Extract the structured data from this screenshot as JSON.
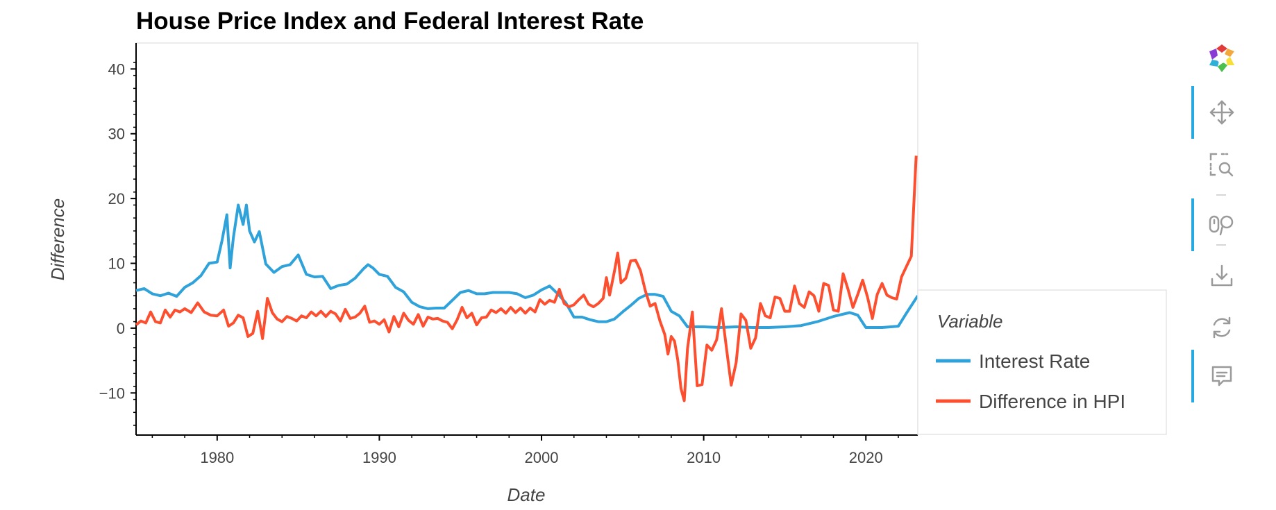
{
  "chart_data": {
    "type": "line",
    "title": "House Price Index and Federal Interest Rate",
    "xlabel": "Date",
    "ylabel": "Difference",
    "xlim": [
      1975.0,
      2023.2
    ],
    "ylim": [
      -16.5,
      44
    ],
    "x_ticks": [
      1980,
      1990,
      2000,
      2010,
      2020
    ],
    "y_ticks": [
      -10,
      0,
      10,
      20,
      30,
      40
    ],
    "grid": false,
    "legend": {
      "title": "Variable",
      "position": "right"
    },
    "series": [
      {
        "name": "Interest Rate",
        "color": "#30a2da",
        "points": [
          [
            1975.0,
            5.8
          ],
          [
            1975.5,
            6.1
          ],
          [
            1976.0,
            5.3
          ],
          [
            1976.5,
            5.0
          ],
          [
            1977.0,
            5.4
          ],
          [
            1977.5,
            4.9
          ],
          [
            1978.0,
            6.3
          ],
          [
            1978.5,
            7.0
          ],
          [
            1979.0,
            8.1
          ],
          [
            1979.5,
            10.0
          ],
          [
            1980.0,
            10.2
          ],
          [
            1980.3,
            13.5
          ],
          [
            1980.6,
            17.5
          ],
          [
            1980.8,
            9.3
          ],
          [
            1981.0,
            14.0
          ],
          [
            1981.3,
            19.0
          ],
          [
            1981.6,
            16.0
          ],
          [
            1981.8,
            19.0
          ],
          [
            1982.0,
            15.0
          ],
          [
            1982.3,
            13.3
          ],
          [
            1982.6,
            14.9
          ],
          [
            1983.0,
            9.9
          ],
          [
            1983.5,
            8.6
          ],
          [
            1984.0,
            9.5
          ],
          [
            1984.5,
            9.8
          ],
          [
            1985.0,
            11.3
          ],
          [
            1985.5,
            8.3
          ],
          [
            1986.0,
            7.9
          ],
          [
            1986.5,
            8.0
          ],
          [
            1987.0,
            6.1
          ],
          [
            1987.5,
            6.6
          ],
          [
            1988.0,
            6.8
          ],
          [
            1988.5,
            7.7
          ],
          [
            1989.0,
            9.1
          ],
          [
            1989.3,
            9.8
          ],
          [
            1989.6,
            9.3
          ],
          [
            1990.0,
            8.3
          ],
          [
            1990.5,
            8.0
          ],
          [
            1991.0,
            6.3
          ],
          [
            1991.5,
            5.6
          ],
          [
            1992.0,
            4.0
          ],
          [
            1992.5,
            3.3
          ],
          [
            1993.0,
            3.0
          ],
          [
            1993.5,
            3.1
          ],
          [
            1994.0,
            3.1
          ],
          [
            1994.5,
            4.3
          ],
          [
            1995.0,
            5.5
          ],
          [
            1995.5,
            5.8
          ],
          [
            1996.0,
            5.3
          ],
          [
            1996.5,
            5.3
          ],
          [
            1997.0,
            5.5
          ],
          [
            1997.5,
            5.5
          ],
          [
            1998.0,
            5.5
          ],
          [
            1998.5,
            5.3
          ],
          [
            1999.0,
            4.7
          ],
          [
            1999.5,
            5.1
          ],
          [
            2000.0,
            5.9
          ],
          [
            2000.5,
            6.5
          ],
          [
            2001.0,
            5.3
          ],
          [
            2001.5,
            3.9
          ],
          [
            2002.0,
            1.7
          ],
          [
            2002.5,
            1.7
          ],
          [
            2003.0,
            1.3
          ],
          [
            2003.5,
            1.0
          ],
          [
            2004.0,
            1.0
          ],
          [
            2004.5,
            1.4
          ],
          [
            2005.0,
            2.5
          ],
          [
            2005.5,
            3.5
          ],
          [
            2006.0,
            4.6
          ],
          [
            2006.5,
            5.2
          ],
          [
            2007.0,
            5.2
          ],
          [
            2007.5,
            4.9
          ],
          [
            2008.0,
            2.6
          ],
          [
            2008.5,
            1.9
          ],
          [
            2009.0,
            0.2
          ],
          [
            2010.0,
            0.2
          ],
          [
            2011.0,
            0.1
          ],
          [
            2012.0,
            0.2
          ],
          [
            2013.0,
            0.1
          ],
          [
            2014.0,
            0.1
          ],
          [
            2015.0,
            0.2
          ],
          [
            2016.0,
            0.4
          ],
          [
            2017.0,
            1.0
          ],
          [
            2018.0,
            1.8
          ],
          [
            2019.0,
            2.4
          ],
          [
            2019.5,
            2.0
          ],
          [
            2020.0,
            0.1
          ],
          [
            2021.0,
            0.1
          ],
          [
            2022.0,
            0.3
          ],
          [
            2022.5,
            2.3
          ],
          [
            2023.2,
            5.0
          ]
        ]
      },
      {
        "name": "Difference in HPI",
        "color": "#fc4f30",
        "points": [
          [
            1975.0,
            0.5
          ],
          [
            1975.3,
            1.1
          ],
          [
            1975.6,
            0.8
          ],
          [
            1975.9,
            2.5
          ],
          [
            1976.2,
            1.0
          ],
          [
            1976.5,
            0.8
          ],
          [
            1976.8,
            2.8
          ],
          [
            1977.1,
            1.7
          ],
          [
            1977.4,
            2.8
          ],
          [
            1977.7,
            2.5
          ],
          [
            1978.0,
            3.0
          ],
          [
            1978.4,
            2.4
          ],
          [
            1978.8,
            3.9
          ],
          [
            1979.2,
            2.5
          ],
          [
            1979.6,
            2.0
          ],
          [
            1980.0,
            1.9
          ],
          [
            1980.4,
            2.8
          ],
          [
            1980.7,
            0.3
          ],
          [
            1981.0,
            0.8
          ],
          [
            1981.3,
            2.0
          ],
          [
            1981.6,
            1.6
          ],
          [
            1981.9,
            -1.3
          ],
          [
            1982.2,
            -0.8
          ],
          [
            1982.5,
            2.6
          ],
          [
            1982.8,
            -1.6
          ],
          [
            1983.1,
            4.6
          ],
          [
            1983.4,
            2.4
          ],
          [
            1983.7,
            1.4
          ],
          [
            1984.0,
            1.0
          ],
          [
            1984.3,
            1.8
          ],
          [
            1984.6,
            1.5
          ],
          [
            1984.9,
            1.1
          ],
          [
            1985.2,
            1.9
          ],
          [
            1985.5,
            1.6
          ],
          [
            1985.8,
            2.5
          ],
          [
            1986.1,
            1.9
          ],
          [
            1986.4,
            2.6
          ],
          [
            1986.7,
            1.8
          ],
          [
            1987.0,
            2.6
          ],
          [
            1987.3,
            2.2
          ],
          [
            1987.6,
            1.1
          ],
          [
            1987.9,
            2.9
          ],
          [
            1988.2,
            1.5
          ],
          [
            1988.5,
            1.7
          ],
          [
            1988.8,
            2.3
          ],
          [
            1989.1,
            3.4
          ],
          [
            1989.4,
            0.9
          ],
          [
            1989.7,
            1.1
          ],
          [
            1990.0,
            0.6
          ],
          [
            1990.3,
            1.3
          ],
          [
            1990.6,
            -0.6
          ],
          [
            1990.9,
            1.8
          ],
          [
            1991.2,
            0.2
          ],
          [
            1991.5,
            2.3
          ],
          [
            1991.8,
            1.2
          ],
          [
            1992.1,
            0.6
          ],
          [
            1992.4,
            2.1
          ],
          [
            1992.7,
            0.3
          ],
          [
            1993.0,
            1.7
          ],
          [
            1993.3,
            1.4
          ],
          [
            1993.6,
            1.5
          ],
          [
            1993.9,
            1.1
          ],
          [
            1994.2,
            0.9
          ],
          [
            1994.5,
            -0.1
          ],
          [
            1994.8,
            1.3
          ],
          [
            1995.1,
            3.2
          ],
          [
            1995.4,
            1.6
          ],
          [
            1995.7,
            2.3
          ],
          [
            1996.0,
            0.5
          ],
          [
            1996.3,
            1.6
          ],
          [
            1996.6,
            1.7
          ],
          [
            1996.9,
            2.8
          ],
          [
            1997.2,
            2.4
          ],
          [
            1997.5,
            3.0
          ],
          [
            1997.8,
            2.3
          ],
          [
            1998.1,
            3.2
          ],
          [
            1998.4,
            2.4
          ],
          [
            1998.7,
            3.1
          ],
          [
            1999.0,
            2.3
          ],
          [
            1999.3,
            3.1
          ],
          [
            1999.6,
            2.5
          ],
          [
            1999.9,
            4.4
          ],
          [
            2000.2,
            3.7
          ],
          [
            2000.5,
            4.3
          ],
          [
            2000.8,
            4.0
          ],
          [
            2001.1,
            6.0
          ],
          [
            2001.4,
            3.8
          ],
          [
            2001.7,
            3.3
          ],
          [
            2002.0,
            3.6
          ],
          [
            2002.3,
            4.4
          ],
          [
            2002.6,
            5.1
          ],
          [
            2002.9,
            3.7
          ],
          [
            2003.2,
            3.3
          ],
          [
            2003.5,
            3.8
          ],
          [
            2003.8,
            4.6
          ],
          [
            2004.0,
            7.8
          ],
          [
            2004.2,
            5.1
          ],
          [
            2004.5,
            8.8
          ],
          [
            2004.7,
            11.6
          ],
          [
            2004.9,
            7.0
          ],
          [
            2005.2,
            7.7
          ],
          [
            2005.5,
            10.4
          ],
          [
            2005.8,
            10.5
          ],
          [
            2006.1,
            8.9
          ],
          [
            2006.4,
            5.8
          ],
          [
            2006.7,
            3.4
          ],
          [
            2007.0,
            3.8
          ],
          [
            2007.3,
            1.1
          ],
          [
            2007.6,
            -1.0
          ],
          [
            2007.8,
            -4.0
          ],
          [
            2008.0,
            -1.3
          ],
          [
            2008.2,
            -2.0
          ],
          [
            2008.4,
            -4.9
          ],
          [
            2008.6,
            -9.3
          ],
          [
            2008.8,
            -11.2
          ],
          [
            2009.0,
            -3.2
          ],
          [
            2009.3,
            2.5
          ],
          [
            2009.6,
            -8.9
          ],
          [
            2009.9,
            -8.7
          ],
          [
            2010.2,
            -2.6
          ],
          [
            2010.5,
            -3.4
          ],
          [
            2010.8,
            -1.8
          ],
          [
            2011.1,
            3.0
          ],
          [
            2011.4,
            -3.0
          ],
          [
            2011.7,
            -8.8
          ],
          [
            2012.0,
            -5.3
          ],
          [
            2012.3,
            2.2
          ],
          [
            2012.6,
            1.2
          ],
          [
            2012.9,
            -3.1
          ],
          [
            2013.2,
            -1.5
          ],
          [
            2013.5,
            3.8
          ],
          [
            2013.8,
            1.9
          ],
          [
            2014.1,
            1.6
          ],
          [
            2014.4,
            4.8
          ],
          [
            2014.7,
            4.6
          ],
          [
            2015.0,
            2.6
          ],
          [
            2015.3,
            2.6
          ],
          [
            2015.6,
            6.5
          ],
          [
            2015.9,
            3.8
          ],
          [
            2016.2,
            3.2
          ],
          [
            2016.5,
            5.6
          ],
          [
            2016.8,
            5.0
          ],
          [
            2017.1,
            2.6
          ],
          [
            2017.4,
            6.9
          ],
          [
            2017.7,
            6.6
          ],
          [
            2018.0,
            2.8
          ],
          [
            2018.3,
            2.6
          ],
          [
            2018.6,
            8.4
          ],
          [
            2018.9,
            6.0
          ],
          [
            2019.2,
            3.2
          ],
          [
            2019.5,
            5.2
          ],
          [
            2019.8,
            7.4
          ],
          [
            2020.1,
            4.8
          ],
          [
            2020.4,
            1.5
          ],
          [
            2020.7,
            5.2
          ],
          [
            2021.0,
            6.9
          ],
          [
            2021.3,
            5.1
          ],
          [
            2021.6,
            4.7
          ],
          [
            2021.9,
            4.5
          ],
          [
            2022.2,
            7.9
          ],
          [
            2022.5,
            9.5
          ],
          [
            2022.8,
            11.1
          ],
          [
            2023.1,
            26.6
          ]
        ]
      }
    ]
  },
  "toolbar": {
    "tools": [
      {
        "icon": "bokeh-logo-icon"
      },
      {
        "icon": "pan-icon",
        "active": true
      },
      {
        "icon": "box-zoom-icon",
        "active": false
      },
      {
        "icon": "wheel-zoom-icon",
        "active": true
      },
      {
        "icon": "save-icon",
        "active": false
      },
      {
        "icon": "reset-icon",
        "active": false
      },
      {
        "icon": "hover-icon",
        "active": true
      }
    ]
  }
}
